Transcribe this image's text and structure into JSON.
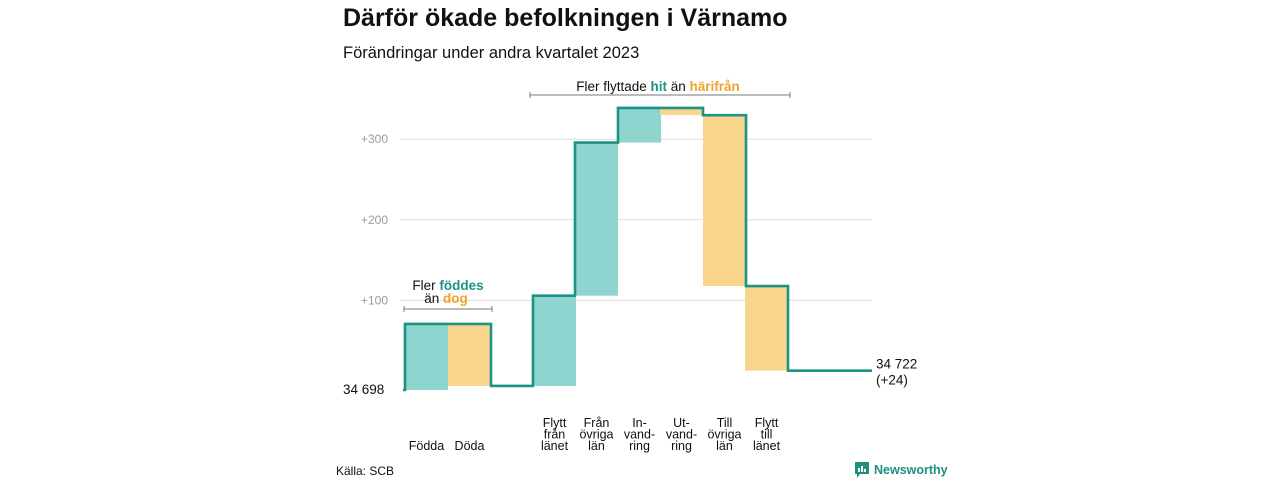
{
  "header": {
    "title": "Därför ökade befolkningen i Värnamo",
    "subtitle": "Förändringar under andra kvartalet 2023"
  },
  "footer": {
    "source": "Källa: SCB",
    "brand": "Newsworthy"
  },
  "colors": {
    "increase": "#8dd5ce",
    "decrease": "#f9d58e",
    "line": "#1c9384",
    "teal_text": "#1c9384",
    "orange_text": "#f0a32e"
  },
  "chart_data": {
    "type": "waterfall",
    "start": {
      "label": "34  698",
      "value": 34698
    },
    "end": {
      "label": "34 722",
      "change_label": "(+24)",
      "value": 34722
    },
    "ylabel": "",
    "yticks": [
      "+100",
      "+200",
      "+300"
    ],
    "ylim": [
      0,
      360
    ],
    "grid": true,
    "steps": [
      {
        "label": [
          "Födda"
        ],
        "value": 82
      },
      {
        "label": [
          "Döda"
        ],
        "value": -77
      },
      {
        "label": [
          "Flytt",
          "från",
          "länet"
        ],
        "value": 112
      },
      {
        "label": [
          "Från",
          "övriga",
          "län"
        ],
        "value": 190
      },
      {
        "label": [
          "In-",
          "vand-",
          "ring"
        ],
        "value": 43
      },
      {
        "label": [
          "Ut-",
          "vand-",
          "ring"
        ],
        "value": -9
      },
      {
        "label": [
          "Till",
          "övriga",
          "län"
        ],
        "value": -212
      },
      {
        "label": [
          "Flytt",
          "till",
          "länet"
        ],
        "value": -105
      }
    ],
    "annotations": [
      {
        "parts": [
          "Fler",
          "föddes"
        ],
        "parts2": [
          "än",
          "dog"
        ]
      },
      {
        "parts": [
          "Fler flyttade",
          "hit",
          "än",
          "härifrån"
        ]
      }
    ]
  }
}
